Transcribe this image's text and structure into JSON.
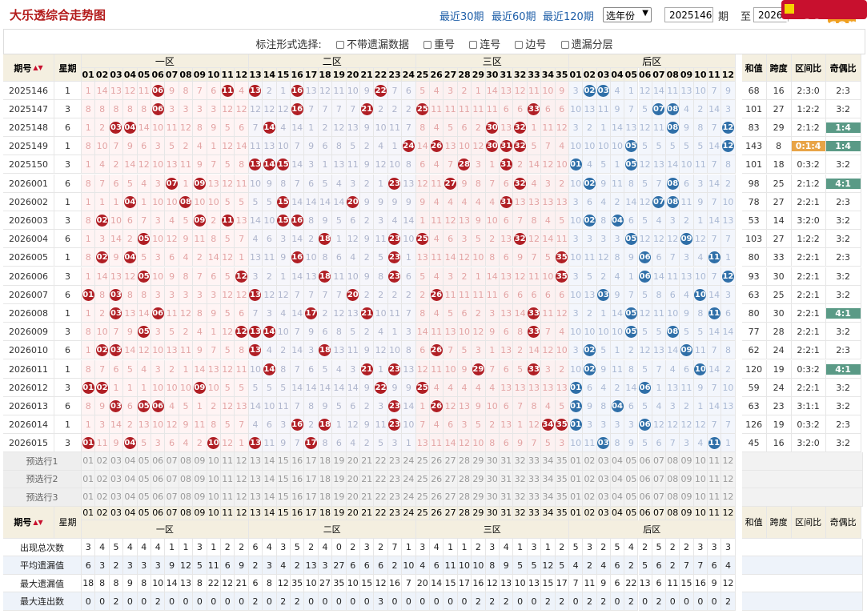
{
  "title": "大乐透综合走势图",
  "quick": [
    "最近30期",
    "最近60期",
    "最近120期"
  ],
  "year_select": "选年份",
  "from_issue": "2025146",
  "qi_label": "期",
  "to_label": "至",
  "to_issue": "2026015",
  "logo": "cz89.com",
  "options": {
    "label": "标注形式选择:",
    "items": [
      "不带遗漏数据",
      "重号",
      "连号",
      "边号",
      "遗漏分层"
    ]
  },
  "headers": {
    "issue": "期号",
    "week": "星期",
    "zones": [
      "一区",
      "二区",
      "三区",
      "后区"
    ],
    "sum": "和值",
    "span": "跨度",
    "ratio": "区间比",
    "oddeven": "奇偶比"
  },
  "front_nums": [
    "01",
    "02",
    "03",
    "04",
    "05",
    "06",
    "07",
    "08",
    "09",
    "10",
    "11",
    "12",
    "13",
    "14",
    "15",
    "16",
    "17",
    "18",
    "19",
    "20",
    "21",
    "22",
    "23",
    "24",
    "25",
    "26",
    "27",
    "28",
    "29",
    "30",
    "31",
    "32",
    "33",
    "34",
    "35"
  ],
  "back_nums": [
    "01",
    "02",
    "03",
    "04",
    "05",
    "06",
    "07",
    "08",
    "09",
    "10",
    "11",
    "12"
  ],
  "rows": [
    {
      "issue": "2025146",
      "week": "1",
      "front": [
        6,
        11,
        13,
        16,
        22
      ],
      "back": [
        2,
        3
      ],
      "sum": "68",
      "span": "16",
      "ratio": "2:3:0",
      "oe": "2:3"
    },
    {
      "issue": "2025147",
      "week": "3",
      "front": [
        6,
        16,
        21,
        25,
        33
      ],
      "back": [
        7,
        8
      ],
      "sum": "101",
      "span": "27",
      "ratio": "1:2:2",
      "oe": "3:2"
    },
    {
      "issue": "2025148",
      "week": "6",
      "front": [
        3,
        4,
        14,
        30,
        32
      ],
      "back": [
        8,
        12
      ],
      "sum": "83",
      "span": "29",
      "ratio": "2:1:2",
      "oe": "1:4"
    },
    {
      "issue": "2025149",
      "week": "1",
      "front": [
        24,
        26,
        30,
        31,
        32
      ],
      "back": [
        5,
        12
      ],
      "sum": "143",
      "span": "8",
      "ratio": "0:1:4",
      "oe": "1:4"
    },
    {
      "issue": "2025150",
      "week": "3",
      "front": [
        13,
        14,
        15,
        28,
        31
      ],
      "back": [
        1,
        5
      ],
      "sum": "101",
      "span": "18",
      "ratio": "0:3:2",
      "oe": "3:2"
    },
    {
      "issue": "2026001",
      "week": "6",
      "front": [
        7,
        9,
        23,
        27,
        32
      ],
      "back": [
        2,
        8
      ],
      "sum": "98",
      "span": "25",
      "ratio": "2:1:2",
      "oe": "4:1"
    },
    {
      "issue": "2026002",
      "week": "1",
      "front": [
        4,
        8,
        15,
        20,
        31
      ],
      "back": [
        7,
        8
      ],
      "sum": "78",
      "span": "27",
      "ratio": "2:2:1",
      "oe": "2:3"
    },
    {
      "issue": "2026003",
      "week": "3",
      "front": [
        2,
        9,
        11,
        15,
        16
      ],
      "back": [
        2,
        4
      ],
      "sum": "53",
      "span": "14",
      "ratio": "3:2:0",
      "oe": "3:2"
    },
    {
      "issue": "2026004",
      "week": "6",
      "front": [
        5,
        18,
        23,
        25,
        32
      ],
      "back": [
        5,
        9
      ],
      "sum": "103",
      "span": "27",
      "ratio": "1:2:2",
      "oe": "3:2"
    },
    {
      "issue": "2026005",
      "week": "1",
      "front": [
        2,
        4,
        16,
        23,
        35
      ],
      "back": [
        6,
        11
      ],
      "sum": "80",
      "span": "33",
      "ratio": "2:2:1",
      "oe": "2:3"
    },
    {
      "issue": "2026006",
      "week": "3",
      "front": [
        5,
        12,
        18,
        23,
        35
      ],
      "back": [
        6,
        12
      ],
      "sum": "93",
      "span": "30",
      "ratio": "2:2:1",
      "oe": "3:2"
    },
    {
      "issue": "2026007",
      "week": "6",
      "front": [
        1,
        3,
        13,
        20,
        26
      ],
      "back": [
        3,
        10
      ],
      "sum": "63",
      "span": "25",
      "ratio": "2:2:1",
      "oe": "3:2"
    },
    {
      "issue": "2026008",
      "week": "1",
      "front": [
        3,
        6,
        17,
        21,
        33
      ],
      "back": [
        5,
        11
      ],
      "sum": "80",
      "span": "30",
      "ratio": "2:2:1",
      "oe": "4:1"
    },
    {
      "issue": "2026009",
      "week": "3",
      "front": [
        5,
        12,
        13,
        14,
        33
      ],
      "back": [
        5,
        8
      ],
      "sum": "77",
      "span": "28",
      "ratio": "2:2:1",
      "oe": "3:2"
    },
    {
      "issue": "2026010",
      "week": "6",
      "front": [
        2,
        3,
        13,
        18,
        26
      ],
      "back": [
        2,
        9
      ],
      "sum": "62",
      "span": "24",
      "ratio": "2:2:1",
      "oe": "2:3"
    },
    {
      "issue": "2026011",
      "week": "1",
      "front": [
        14,
        21,
        23,
        29,
        33
      ],
      "back": [
        2,
        10
      ],
      "sum": "120",
      "span": "19",
      "ratio": "0:3:2",
      "oe": "4:1"
    },
    {
      "issue": "2026012",
      "week": "3",
      "front": [
        1,
        2,
        9,
        22,
        25
      ],
      "back": [
        1,
        6
      ],
      "sum": "59",
      "span": "24",
      "ratio": "2:2:1",
      "oe": "3:2"
    },
    {
      "issue": "2026013",
      "week": "6",
      "front": [
        3,
        5,
        6,
        23,
        26
      ],
      "back": [
        1,
        4
      ],
      "sum": "63",
      "span": "23",
      "ratio": "3:1:1",
      "oe": "3:2"
    },
    {
      "issue": "2026014",
      "week": "1",
      "front": [
        16,
        18,
        23,
        34,
        35
      ],
      "back": [
        1,
        6
      ],
      "sum": "126",
      "span": "19",
      "ratio": "0:3:2",
      "oe": "2:3"
    },
    {
      "issue": "2026015",
      "week": "3",
      "front": [
        1,
        4,
        10,
        13,
        17
      ],
      "back": [
        3,
        11
      ],
      "sum": "45",
      "span": "16",
      "ratio": "3:2:0",
      "oe": "3:2"
    }
  ],
  "repeat_marks": {
    "2026005": [
      23
    ],
    "2026006": [
      23
    ],
    "2026009": [
      12
    ]
  },
  "highlight_oe": {
    "2025148": "green",
    "2025149": "green",
    "2026001": "green",
    "2026008": "green",
    "2026011": "green"
  },
  "highlight_ratio": {
    "2025149": "orange"
  },
  "preselect": [
    "预选行1",
    "预选行2",
    "预选行3"
  ],
  "stats": [
    {
      "label": "出现总次数",
      "front": [
        "3",
        "4",
        "5",
        "4",
        "4",
        "4",
        "1",
        "1",
        "3",
        "1",
        "2",
        "2",
        "6",
        "4",
        "3",
        "5",
        "2",
        "4",
        "0",
        "2",
        "3",
        "2",
        "7",
        "1",
        "3",
        "4",
        "1",
        "1",
        "2",
        "3",
        "4",
        "1",
        "3",
        "1",
        "2"
      ],
      "back": [
        "5",
        "3",
        "2",
        "5",
        "4",
        "2",
        "5",
        "2",
        "2",
        "3",
        "3",
        "3"
      ]
    },
    {
      "label": "平均遗漏值",
      "front": [
        "6",
        "3",
        "2",
        "3",
        "3",
        "3",
        "9",
        "12",
        "5",
        "11",
        "6",
        "9",
        "2",
        "3",
        "4",
        "2",
        "13",
        "3",
        "27",
        "6",
        "6",
        "6",
        "2",
        "10",
        "4",
        "6",
        "11",
        "10",
        "10",
        "8",
        "9",
        "5",
        "5",
        "12",
        "5"
      ],
      "back": [
        "4",
        "2",
        "4",
        "6",
        "2",
        "5",
        "6",
        "2",
        "7",
        "7",
        "6",
        "4"
      ]
    },
    {
      "label": "最大遗漏值",
      "front": [
        "18",
        "8",
        "8",
        "9",
        "8",
        "10",
        "14",
        "13",
        "8",
        "22",
        "12",
        "21",
        "6",
        "8",
        "12",
        "35",
        "10",
        "27",
        "35",
        "10",
        "15",
        "12",
        "16",
        "7",
        "20",
        "14",
        "15",
        "17",
        "16",
        "12",
        "13",
        "10",
        "13",
        "15",
        "17"
      ],
      "back": [
        "7",
        "11",
        "9",
        "6",
        "22",
        "13",
        "6",
        "11",
        "15",
        "16",
        "9",
        "12"
      ]
    },
    {
      "label": "最大连出数",
      "front": [
        "0",
        "0",
        "2",
        "0",
        "0",
        "2",
        "0",
        "0",
        "0",
        "0",
        "0",
        "0",
        "2",
        "0",
        "2",
        "2",
        "0",
        "0",
        "0",
        "0",
        "0",
        "3",
        "0",
        "0",
        "0",
        "0",
        "0",
        "0",
        "2",
        "2",
        "2",
        "0",
        "0",
        "2",
        "2"
      ],
      "back": [
        "0",
        "2",
        "2",
        "0",
        "2",
        "0",
        "2",
        "0",
        "0",
        "0",
        "0",
        "2"
      ]
    }
  ]
}
